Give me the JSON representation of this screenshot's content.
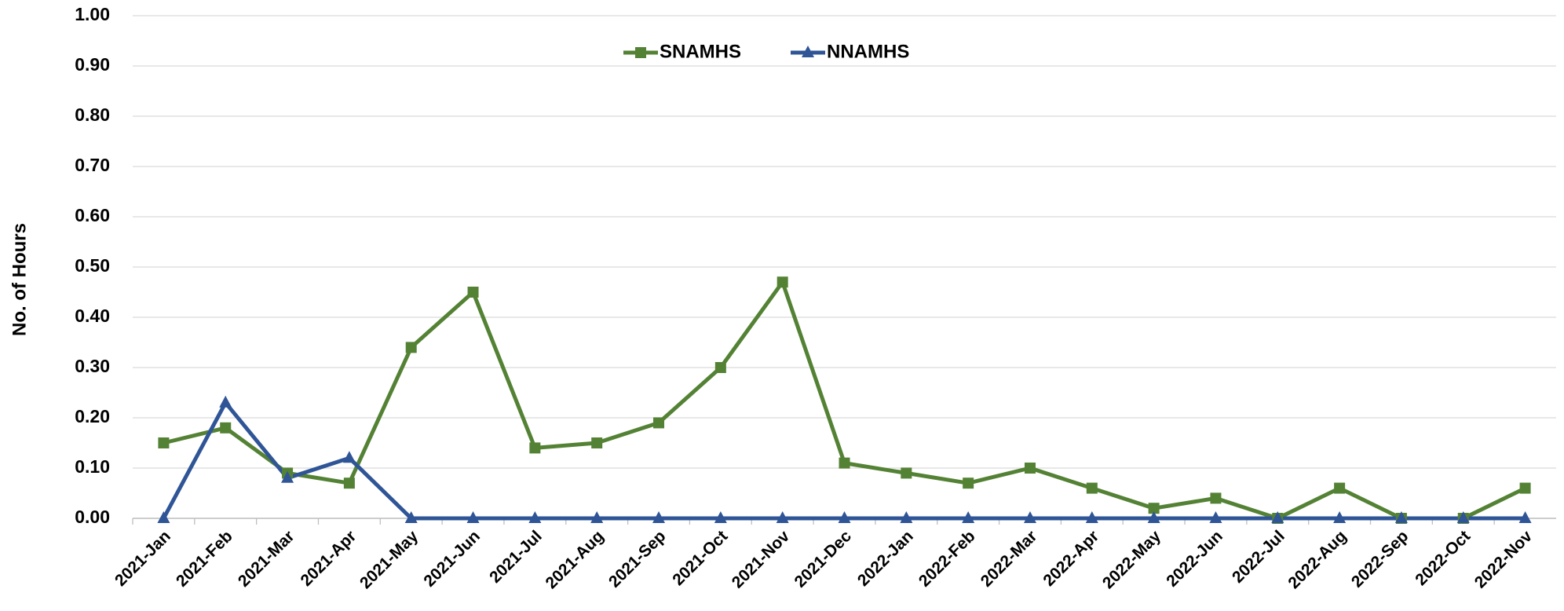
{
  "chart_data": {
    "type": "line",
    "y_label": "No. of Hours",
    "categories": [
      "2021-Jan",
      "2021-Feb",
      "2021-Mar",
      "2021-Apr",
      "2021-May",
      "2021-Jun",
      "2021-Jul",
      "2021-Aug",
      "2021-Sep",
      "2021-Oct",
      "2021-Nov",
      "2021-Dec",
      "2022-Jan",
      "2022-Feb",
      "2022-Mar",
      "2022-Apr",
      "2022-May",
      "2022-Jun",
      "2022-Jul",
      "2022-Aug",
      "2022-Sep",
      "2022-Oct",
      "2022-Nov"
    ],
    "series": [
      {
        "name": "SNAMHS",
        "color": "#548235",
        "marker": "square",
        "values": [
          0.15,
          0.18,
          0.09,
          0.07,
          0.34,
          0.45,
          0.14,
          0.15,
          0.19,
          0.3,
          0.47,
          0.11,
          0.09,
          0.07,
          0.1,
          0.06,
          0.02,
          0.04,
          0.0,
          0.06,
          0.0,
          0.0,
          0.06
        ]
      },
      {
        "name": "NNAMHS",
        "color": "#2f5597",
        "marker": "triangle",
        "values": [
          0,
          0.23,
          0.08,
          0.12,
          0,
          0,
          0,
          0,
          0,
          0,
          0,
          0,
          0,
          0,
          0,
          0,
          0,
          0,
          0,
          0,
          0,
          0,
          0
        ]
      }
    ],
    "ylim": [
      0,
      1
    ],
    "yticks": [
      {
        "value": 0,
        "label": "0.00"
      },
      {
        "value": 0.1,
        "label": "0.10"
      },
      {
        "value": 0.2,
        "label": "0.20"
      },
      {
        "value": 0.3,
        "label": "0.30"
      },
      {
        "value": 0.4,
        "label": "0.40"
      },
      {
        "value": 0.5,
        "label": "0.50"
      },
      {
        "value": 0.6,
        "label": "0.60"
      },
      {
        "value": 0.7,
        "label": "0.70"
      },
      {
        "value": 0.8,
        "label": "0.80"
      },
      {
        "value": 0.9,
        "label": "0.90"
      },
      {
        "value": 1,
        "label": "1.00"
      }
    ],
    "grid": true,
    "legend": "top"
  }
}
